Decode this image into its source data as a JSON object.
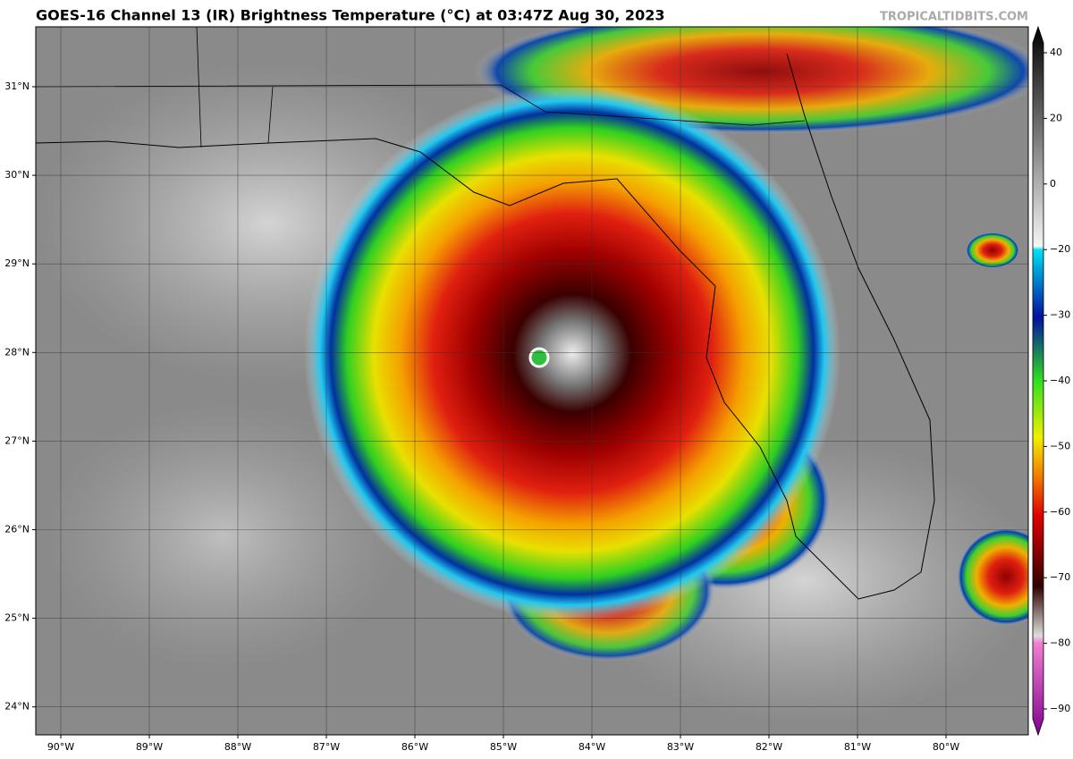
{
  "header": {
    "title": "GOES-16 Channel 13 (IR) Brightness Temperature (°C) at 03:47Z Aug 30, 2023",
    "credit": "TROPICALTIDBITS.COM"
  },
  "map": {
    "lat_labels": [
      "31°N",
      "30°N",
      "29°N",
      "28°N",
      "27°N",
      "26°N",
      "25°N",
      "24°N"
    ],
    "lon_labels": [
      "90°W",
      "89°W",
      "88°W",
      "87°W",
      "86°W",
      "85°W",
      "84°W",
      "83°W",
      "82°W",
      "81°W",
      "80°W"
    ]
  },
  "colorbar": {
    "ticks": [
      "40",
      "20",
      "0",
      "−20",
      "−30",
      "−40",
      "−50",
      "−60",
      "−70",
      "−80",
      "−90"
    ]
  }
}
